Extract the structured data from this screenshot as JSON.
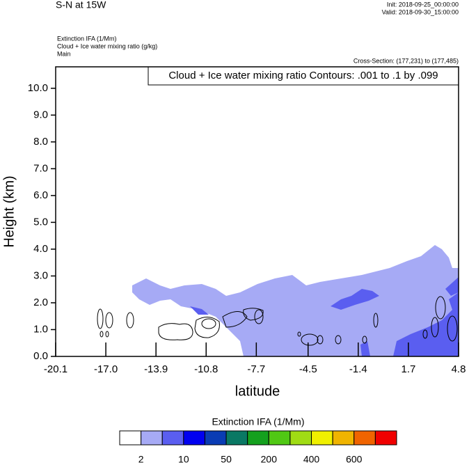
{
  "chart_data": {
    "type": "contour-section",
    "title": "S-N at 15W",
    "init": "Init: 2018-09-25_00:00:00",
    "valid": "Valid: 2018-09-30_15:00:00",
    "fields": [
      "Extinction IFA   (1/Mm)",
      "Cloud + Ice water mixing ratio   (g/kg)",
      "Main"
    ],
    "cross_section": "Cross-Section: (177,231) to (177,485)",
    "contour_note": "Cloud + Ice water mixing ratio Contours: .001 to .1 by .099",
    "x_label": "latitude",
    "y_label": "Height (km)",
    "xlim": [
      -20.1,
      4.8
    ],
    "xticks": [
      -20.1,
      {
        "value": -17.0,
        "label": "-17.0"
      },
      -13.9,
      -10.8,
      -7.7,
      -4.5,
      -1.4,
      1.7,
      4.8
    ],
    "ylim": [
      0,
      10.8
    ],
    "yticks": [
      {
        "value": 0,
        "label": "0.0"
      },
      {
        "value": 1,
        "label": "1.0"
      },
      {
        "value": 2,
        "label": "2.0"
      },
      {
        "value": 3,
        "label": "3.0"
      },
      {
        "value": 4,
        "label": "4.0"
      },
      {
        "value": 5,
        "label": "5.0"
      },
      {
        "value": 6,
        "label": "6.0"
      },
      {
        "value": 7,
        "label": "7.0"
      },
      {
        "value": 8,
        "label": "8.0"
      },
      {
        "value": 9,
        "label": "9.0"
      },
      {
        "value": 10,
        "label": "10.0"
      }
    ],
    "colorbar": {
      "title": "Extinction IFA  (1/Mm)",
      "colors": [
        "#ffffff",
        "#a6aaf5",
        "#5a5ef0",
        "#0000f0",
        "#0a3cb4",
        "#0a7864",
        "#14a01e",
        "#50c814",
        "#a0dc14",
        "#f0f000",
        "#f0b400",
        "#f06400",
        "#f00000"
      ],
      "labels": [
        2,
        10,
        50,
        200,
        400,
        600
      ]
    }
  }
}
